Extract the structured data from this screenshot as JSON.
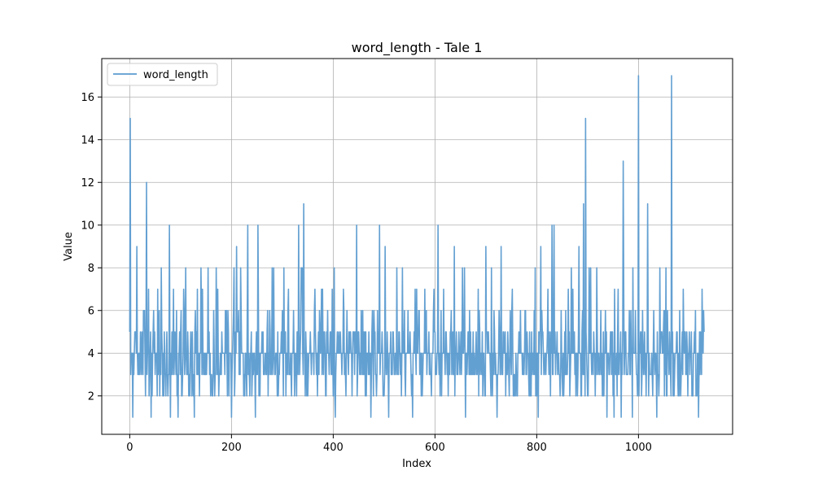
{
  "chart_data": {
    "type": "line",
    "title": "word_length - Tale 1",
    "xlabel": "Index",
    "ylabel": "Value",
    "xlim": [
      -55,
      1185
    ],
    "ylim": [
      0.2,
      17.8
    ],
    "x_ticks": [
      0,
      200,
      400,
      600,
      800,
      1000
    ],
    "y_ticks": [
      2,
      4,
      6,
      8,
      10,
      12,
      14,
      16
    ],
    "grid": true,
    "legend_position": "top-left",
    "x_count": 1130,
    "series": [
      {
        "name": "word_length",
        "color": "#5b9bd0",
        "peaks": [
          [
            1,
            15
          ],
          [
            3,
            4
          ],
          [
            6,
            1
          ],
          [
            10,
            5
          ],
          [
            14,
            9
          ],
          [
            20,
            3
          ],
          [
            28,
            6
          ],
          [
            33,
            12
          ],
          [
            38,
            2
          ],
          [
            42,
            1
          ],
          [
            47,
            6
          ],
          [
            55,
            7
          ],
          [
            62,
            8
          ],
          [
            70,
            3
          ],
          [
            78,
            10
          ],
          [
            80,
            1
          ],
          [
            86,
            7
          ],
          [
            95,
            1
          ],
          [
            103,
            2
          ],
          [
            110,
            8
          ],
          [
            120,
            5
          ],
          [
            127,
            1
          ],
          [
            135,
            3
          ],
          [
            140,
            8
          ],
          [
            150,
            4
          ],
          [
            154,
            8
          ],
          [
            162,
            2
          ],
          [
            170,
            8
          ],
          [
            180,
            3
          ],
          [
            190,
            6
          ],
          [
            200,
            1
          ],
          [
            205,
            8
          ],
          [
            210,
            9
          ],
          [
            218,
            8
          ],
          [
            226,
            2
          ],
          [
            232,
            10
          ],
          [
            240,
            2
          ],
          [
            247,
            1
          ],
          [
            252,
            10
          ],
          [
            260,
            5
          ],
          [
            268,
            3
          ],
          [
            275,
            6
          ],
          [
            280,
            8
          ],
          [
            290,
            2
          ],
          [
            298,
            5
          ],
          [
            303,
            8
          ],
          [
            312,
            7
          ],
          [
            318,
            2
          ],
          [
            325,
            4
          ],
          [
            332,
            10
          ],
          [
            338,
            8
          ],
          [
            342,
            11
          ],
          [
            348,
            2
          ],
          [
            356,
            4
          ],
          [
            364,
            7
          ],
          [
            372,
            3
          ],
          [
            382,
            5
          ],
          [
            392,
            3
          ],
          [
            398,
            7
          ],
          [
            404,
            1
          ],
          [
            412,
            4
          ],
          [
            420,
            7
          ],
          [
            430,
            3
          ],
          [
            440,
            5
          ],
          [
            446,
            10
          ],
          [
            452,
            3
          ],
          [
            458,
            6
          ],
          [
            465,
            2
          ],
          [
            474,
            1
          ],
          [
            482,
            5
          ],
          [
            491,
            10
          ],
          [
            498,
            2
          ],
          [
            502,
            9
          ],
          [
            509,
            1
          ],
          [
            517,
            5
          ],
          [
            525,
            8
          ],
          [
            532,
            3
          ],
          [
            540,
            6
          ],
          [
            548,
            4
          ],
          [
            556,
            1
          ],
          [
            564,
            7
          ],
          [
            572,
            4
          ],
          [
            580,
            7
          ],
          [
            590,
            4
          ],
          [
            598,
            7
          ],
          [
            606,
            10
          ],
          [
            612,
            6
          ],
          [
            620,
            3
          ],
          [
            630,
            5
          ],
          [
            638,
            9
          ],
          [
            646,
            4
          ],
          [
            654,
            8
          ],
          [
            660,
            1
          ],
          [
            668,
            6
          ],
          [
            676,
            3
          ],
          [
            685,
            7
          ],
          [
            694,
            2
          ],
          [
            700,
            9
          ],
          [
            708,
            4
          ],
          [
            716,
            6
          ],
          [
            722,
            1
          ],
          [
            730,
            9
          ],
          [
            738,
            5
          ],
          [
            746,
            2
          ],
          [
            752,
            7
          ],
          [
            760,
            3
          ],
          [
            768,
            6
          ],
          [
            776,
            4
          ],
          [
            784,
            3
          ],
          [
            790,
            5
          ],
          [
            797,
            8
          ],
          [
            803,
            1
          ],
          [
            808,
            9
          ],
          [
            815,
            3
          ],
          [
            822,
            7
          ],
          [
            830,
            10
          ],
          [
            834,
            10
          ],
          [
            840,
            5
          ],
          [
            848,
            6
          ],
          [
            856,
            3
          ],
          [
            862,
            7
          ],
          [
            868,
            8
          ],
          [
            875,
            3
          ],
          [
            883,
            9
          ],
          [
            888,
            2
          ],
          [
            892,
            11
          ],
          [
            896,
            15
          ],
          [
            900,
            2
          ],
          [
            906,
            8
          ],
          [
            912,
            5
          ],
          [
            920,
            3
          ],
          [
            926,
            6
          ],
          [
            932,
            2
          ],
          [
            938,
            1
          ],
          [
            946,
            5
          ],
          [
            952,
            1
          ],
          [
            960,
            7
          ],
          [
            966,
            1
          ],
          [
            970,
            13
          ],
          [
            976,
            3
          ],
          [
            982,
            6
          ],
          [
            988,
            1
          ],
          [
            994,
            6
          ],
          [
            1000,
            17
          ],
          [
            1006,
            2
          ],
          [
            1012,
            5
          ],
          [
            1018,
            11
          ],
          [
            1024,
            3
          ],
          [
            1030,
            6
          ],
          [
            1036,
            1
          ],
          [
            1042,
            8
          ],
          [
            1048,
            4
          ],
          [
            1054,
            8
          ],
          [
            1060,
            3
          ],
          [
            1065,
            17
          ],
          [
            1070,
            2
          ],
          [
            1076,
            5
          ],
          [
            1082,
            3
          ],
          [
            1088,
            7
          ],
          [
            1094,
            3
          ],
          [
            1100,
            5
          ],
          [
            1106,
            2
          ],
          [
            1112,
            6
          ],
          [
            1118,
            1
          ],
          [
            1122,
            5
          ],
          [
            1127,
            4
          ]
        ]
      }
    ]
  }
}
